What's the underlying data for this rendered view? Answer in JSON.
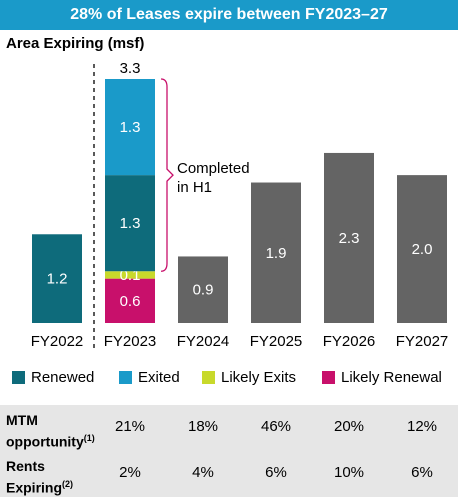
{
  "header": {
    "title": "28% of Leases expire between FY2023–27"
  },
  "chart_data": {
    "type": "bar",
    "stacked": true,
    "ylabel": "Area Expiring (msf)",
    "categories": [
      "FY2022",
      "FY2023",
      "FY2024",
      "FY2025",
      "FY2026",
      "FY2027"
    ],
    "series": [
      {
        "name": "Renewed",
        "color": "#0e6b7b",
        "values": [
          1.2,
          1.3,
          0,
          0,
          0,
          0
        ]
      },
      {
        "name": "Exited",
        "color": "#1a9ac9",
        "values": [
          0,
          1.3,
          0,
          0,
          0,
          0
        ]
      },
      {
        "name": "Likely Exits",
        "color": "#c8d92b",
        "values": [
          0,
          0.1,
          0,
          0,
          0,
          0
        ]
      },
      {
        "name": "Likely Renewal",
        "color": "#c8106b",
        "values": [
          0,
          0.6,
          0,
          0,
          0,
          0
        ]
      },
      {
        "name": "",
        "color": "#646464",
        "values": [
          0,
          0,
          0.9,
          1.9,
          2.3,
          2.0
        ]
      }
    ],
    "segment_labels": {
      "FY2022": [
        "1.2"
      ],
      "FY2023": [
        "0.6",
        "0.1",
        "1.3",
        "1.3"
      ],
      "FY2024": [
        "0.9"
      ],
      "FY2025": [
        "1.9"
      ],
      "FY2026": [
        "2.3"
      ],
      "FY2027": [
        "2.0"
      ]
    },
    "total_labels": {
      "FY2023": "3.3"
    },
    "annotation": "Completed\nin H1",
    "ylim": [
      0,
      3.3
    ],
    "grid": false
  },
  "legend": [
    {
      "label": "Renewed",
      "color": "#0e6b7b"
    },
    {
      "label": "Exited",
      "color": "#1a9ac9"
    },
    {
      "label": "Likely Exits",
      "color": "#c8d92b"
    },
    {
      "label": "Likely Renewal",
      "color": "#c8106b"
    }
  ],
  "metrics": [
    {
      "label": "MTM opportunity",
      "note": "(1)",
      "values": [
        "21%",
        "18%",
        "46%",
        "20%",
        "12%"
      ]
    },
    {
      "label": "Rents Expiring",
      "note": "(2)",
      "values": [
        "2%",
        "4%",
        "6%",
        "10%",
        "6%"
      ]
    }
  ]
}
